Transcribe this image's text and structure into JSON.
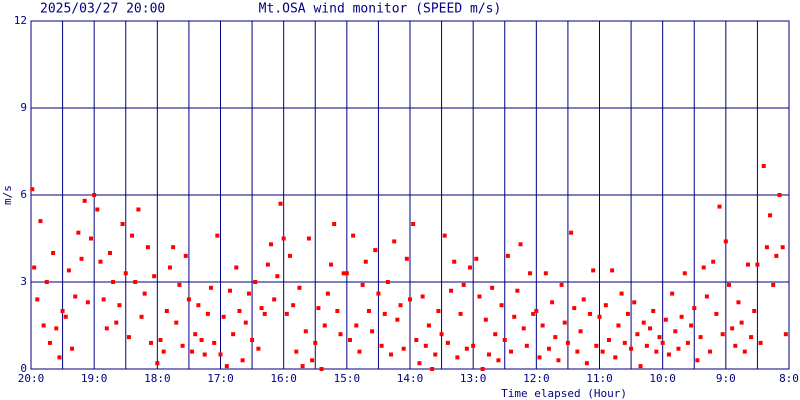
{
  "chart_data": {
    "type": "scatter",
    "stamp": "2025/03/27 20:00",
    "title": "Mt.OSA wind monitor (SPEED m/s)",
    "ylabel": "m/s",
    "xlabel": "Time elapsed (Hour)",
    "color": "#ff0000",
    "grid_color": "#000080",
    "grid": true,
    "xlim": [
      0,
      12
    ],
    "ylim": [
      0,
      12
    ],
    "yticks": [
      0,
      3,
      6,
      9,
      12
    ],
    "xticks": [
      {
        "value": 0,
        "label": "20:0"
      },
      {
        "value": 1,
        "label": "19:0"
      },
      {
        "value": 2,
        "label": "18:0"
      },
      {
        "value": 3,
        "label": "17:0"
      },
      {
        "value": 4,
        "label": "16:0"
      },
      {
        "value": 5,
        "label": "15:0"
      },
      {
        "value": 6,
        "label": "14:0"
      },
      {
        "value": 7,
        "label": "13:0"
      },
      {
        "value": 8,
        "label": "12:0"
      },
      {
        "value": 9,
        "label": "11:0"
      },
      {
        "value": 10,
        "label": "10:0"
      },
      {
        "value": 11,
        "label": "9:0"
      },
      {
        "value": 12,
        "label": "8:0"
      }
    ],
    "minor_xticks": [
      0.5,
      1.5,
      2.5,
      3.5,
      4.5,
      5.5,
      6.5,
      7.5,
      8.5,
      9.5,
      10.5,
      11.5
    ],
    "x": [
      0.02,
      0.05,
      0.1,
      0.15,
      0.2,
      0.25,
      0.3,
      0.35,
      0.4,
      0.45,
      0.5,
      0.55,
      0.6,
      0.65,
      0.7,
      0.75,
      0.8,
      0.85,
      0.9,
      0.95,
      1.0,
      1.05,
      1.1,
      1.15,
      1.2,
      1.25,
      1.3,
      1.35,
      1.4,
      1.45,
      1.5,
      1.55,
      1.6,
      1.65,
      1.7,
      1.75,
      1.8,
      1.85,
      1.9,
      1.95,
      2.0,
      2.05,
      2.1,
      2.15,
      2.2,
      2.25,
      2.3,
      2.35,
      2.4,
      2.45,
      2.5,
      2.55,
      2.6,
      2.65,
      2.7,
      2.75,
      2.8,
      2.85,
      2.9,
      2.95,
      3.0,
      3.05,
      3.1,
      3.15,
      3.2,
      3.25,
      3.3,
      3.35,
      3.4,
      3.45,
      3.5,
      3.55,
      3.6,
      3.65,
      3.7,
      3.75,
      3.8,
      3.85,
      3.9,
      3.95,
      4.0,
      4.05,
      4.1,
      4.15,
      4.2,
      4.25,
      4.3,
      4.35,
      4.4,
      4.45,
      4.5,
      4.55,
      4.6,
      4.65,
      4.7,
      4.75,
      4.8,
      4.85,
      4.9,
      4.95,
      5.0,
      5.05,
      5.1,
      5.15,
      5.2,
      5.25,
      5.3,
      5.35,
      5.4,
      5.45,
      5.5,
      5.55,
      5.6,
      5.65,
      5.7,
      5.75,
      5.8,
      5.85,
      5.9,
      5.95,
      6.0,
      6.05,
      6.1,
      6.15,
      6.2,
      6.25,
      6.3,
      6.35,
      6.4,
      6.45,
      6.5,
      6.55,
      6.6,
      6.65,
      6.7,
      6.75,
      6.8,
      6.85,
      6.9,
      6.95,
      7.0,
      7.05,
      7.1,
      7.15,
      7.2,
      7.25,
      7.3,
      7.35,
      7.4,
      7.45,
      7.5,
      7.55,
      7.6,
      7.65,
      7.7,
      7.75,
      7.8,
      7.85,
      7.9,
      7.95,
      8.0,
      8.05,
      8.1,
      8.15,
      8.2,
      8.25,
      8.3,
      8.35,
      8.4,
      8.45,
      8.5,
      8.55,
      8.6,
      8.65,
      8.7,
      8.75,
      8.8,
      8.85,
      8.9,
      8.95,
      9.0,
      9.05,
      9.1,
      9.15,
      9.2,
      9.25,
      9.3,
      9.35,
      9.4,
      9.45,
      9.5,
      9.55,
      9.6,
      9.65,
      9.7,
      9.75,
      9.8,
      9.85,
      9.9,
      9.95,
      10.0,
      10.05,
      10.1,
      10.15,
      10.2,
      10.25,
      10.3,
      10.35,
      10.4,
      10.45,
      10.5,
      10.55,
      10.6,
      10.65,
      10.7,
      10.75,
      10.8,
      10.85,
      10.9,
      10.95,
      11.0,
      11.05,
      11.1,
      11.15,
      11.2,
      11.25,
      11.3,
      11.35,
      11.4,
      11.45,
      11.5,
      11.55,
      11.6,
      11.65,
      11.7,
      11.75,
      11.8,
      11.85,
      11.9,
      11.95
    ],
    "values": [
      6.2,
      3.5,
      2.4,
      5.1,
      1.5,
      3.0,
      0.9,
      4.0,
      1.4,
      0.4,
      2.0,
      1.8,
      3.4,
      0.7,
      2.5,
      4.7,
      3.8,
      5.8,
      2.3,
      4.5,
      6.0,
      5.5,
      3.7,
      2.4,
      1.4,
      4.0,
      3.0,
      1.6,
      2.2,
      5.0,
      3.3,
      1.1,
      4.6,
      3.0,
      5.5,
      1.8,
      2.6,
      4.2,
      0.9,
      3.2,
      0.2,
      1.0,
      0.6,
      2.0,
      3.5,
      4.2,
      1.6,
      2.9,
      0.8,
      3.9,
      2.4,
      0.6,
      1.2,
      2.2,
      1.0,
      0.5,
      1.9,
      2.8,
      0.9,
      4.6,
      0.5,
      1.8,
      0.1,
      2.7,
      1.2,
      3.5,
      2.0,
      0.3,
      1.6,
      2.6,
      1.0,
      3.0,
      0.7,
      2.1,
      1.9,
      3.6,
      4.3,
      2.4,
      3.2,
      5.7,
      4.5,
      1.9,
      3.9,
      2.2,
      0.6,
      2.8,
      0.1,
      1.3,
      4.5,
      0.3,
      0.9,
      2.1,
      0.0,
      1.5,
      2.6,
      3.6,
      5.0,
      2.0,
      1.2,
      3.3,
      3.3,
      1.0,
      4.6,
      1.5,
      0.6,
      2.9,
      3.7,
      2.0,
      1.3,
      4.1,
      2.6,
      0.8,
      1.9,
      3.0,
      0.5,
      4.4,
      1.7,
      2.2,
      0.7,
      3.8,
      2.4,
      5.0,
      1.0,
      0.2,
      2.5,
      0.8,
      1.5,
      0.0,
      0.5,
      2.0,
      1.2,
      4.6,
      0.9,
      2.7,
      3.7,
      0.4,
      1.9,
      2.9,
      0.7,
      3.5,
      0.8,
      3.8,
      2.5,
      0.0,
      1.7,
      0.5,
      2.8,
      1.2,
      0.3,
      2.2,
      1.0,
      3.9,
      0.6,
      1.8,
      2.7,
      4.3,
      1.4,
      0.8,
      3.3,
      1.9,
      2.0,
      0.4,
      1.5,
      3.3,
      0.7,
      2.3,
      1.1,
      0.3,
      2.9,
      1.6,
      0.9,
      4.7,
      2.1,
      0.6,
      1.3,
      2.4,
      0.2,
      1.9,
      3.4,
      0.8,
      1.8,
      0.6,
      2.2,
      1.0,
      3.4,
      0.4,
      1.5,
      2.6,
      0.9,
      1.9,
      0.7,
      2.3,
      1.2,
      0.1,
      1.6,
      0.8,
      1.4,
      2.0,
      0.6,
      1.1,
      0.9,
      1.7,
      0.5,
      2.6,
      1.3,
      0.7,
      1.8,
      3.3,
      0.9,
      1.5,
      2.1,
      0.3,
      1.1,
      3.5,
      2.5,
      0.6,
      3.7,
      1.9,
      5.6,
      1.2,
      4.4,
      2.9,
      1.4,
      0.8,
      2.3,
      1.6,
      0.6,
      3.6,
      1.1,
      2.0,
      3.6,
      0.9,
      7.0,
      4.2,
      5.3,
      2.9,
      3.9,
      6.0,
      4.2,
      1.2
    ]
  }
}
